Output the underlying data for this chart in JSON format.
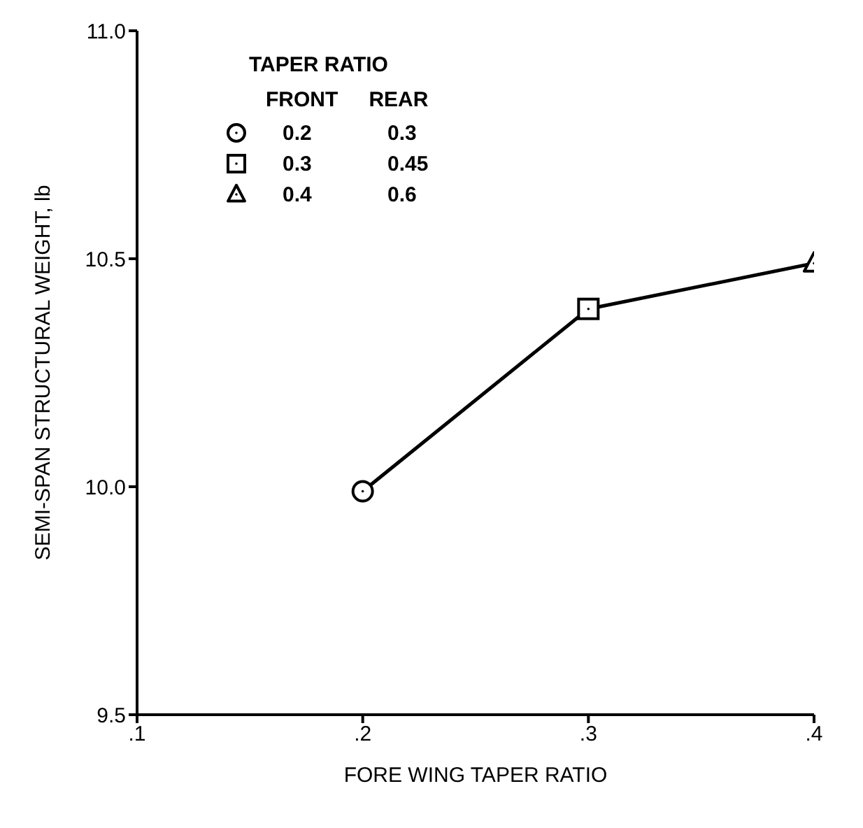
{
  "chart_data": {
    "type": "line",
    "xlabel": "FORE WING TAPER RATIO",
    "ylabel": "SEMI-SPAN STRUCTURAL WEIGHT, lb",
    "legend_title": "TAPER RATIO",
    "annotations": [
      "FRONT",
      "REAR"
    ],
    "legend": "top left",
    "grid": false,
    "x": [
      0.2,
      0.3,
      0.4
    ],
    "series": [
      {
        "type": "line",
        "color": "#000000",
        "values": [
          9.99,
          10.39,
          10.49
        ],
        "marker": "none"
      },
      {
        "type": "scatter",
        "name": "0.2 0.3",
        "color": "#000000",
        "x": [
          0.2
        ],
        "values": [
          9.99
        ],
        "marker": "circle"
      },
      {
        "type": "scatter",
        "name": "0.3 0.45",
        "color": "#000000",
        "x": [
          0.3
        ],
        "values": [
          10.39
        ],
        "marker": "square"
      },
      {
        "type": "scatter",
        "name": "0.4 0.6",
        "color": "#000000",
        "x": [
          0.4
        ],
        "values": [
          10.49
        ],
        "marker": "triangle"
      }
    ],
    "xlim": [
      0.1,
      0.4
    ],
    "xticks": [
      {
        "value": 0.1,
        "label": ".1"
      },
      {
        "value": 0.2,
        "label": ".2"
      },
      {
        "value": 0.3,
        "label": ".3"
      },
      {
        "value": 0.4,
        "label": ".4"
      }
    ],
    "ylim": [
      9.5,
      11.0
    ],
    "yticks": [
      9.5,
      {
        "value": 10,
        "label": "10.0"
      },
      10.5,
      {
        "value": 11,
        "label": "11.0"
      }
    ]
  }
}
